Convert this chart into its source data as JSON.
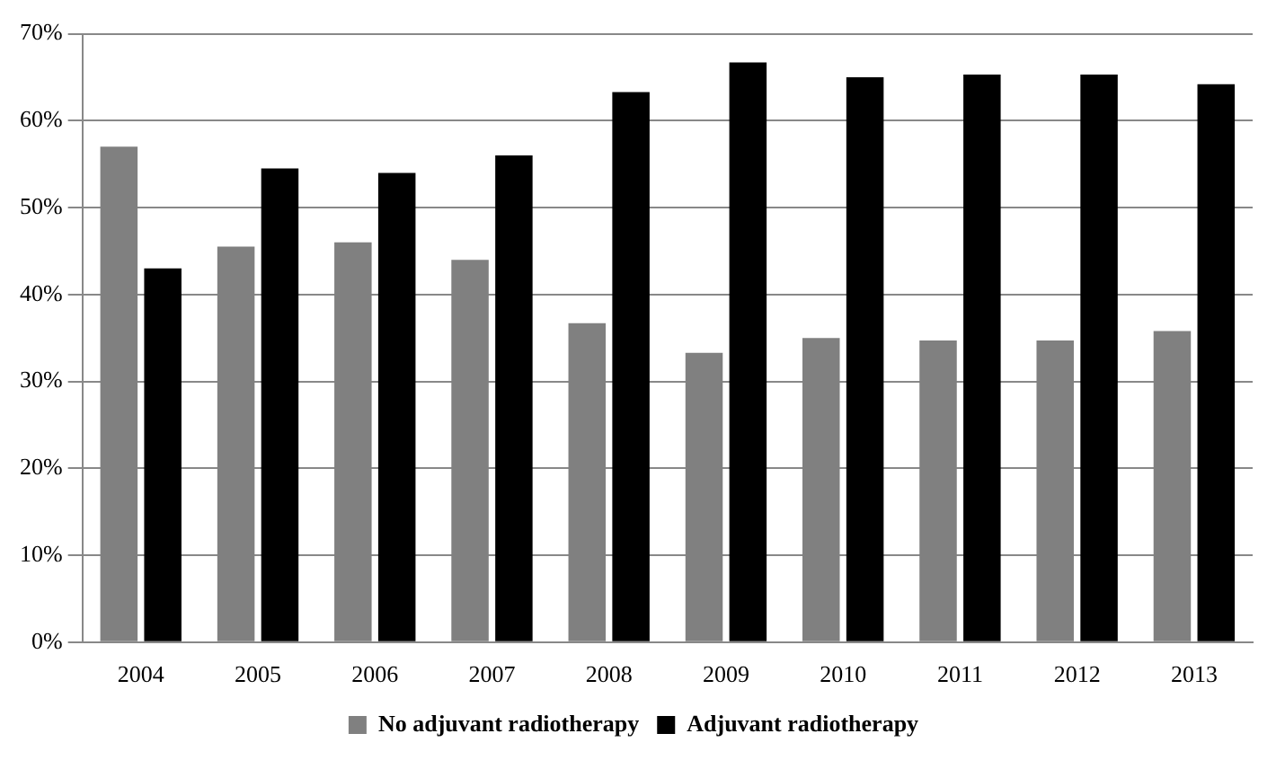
{
  "chart_data": {
    "type": "bar",
    "categories": [
      "2004",
      "2005",
      "2006",
      "2007",
      "2008",
      "2009",
      "2010",
      "2011",
      "2012",
      "2013"
    ],
    "series": [
      {
        "name": "No adjuvant radiotherapy",
        "color": "#808080",
        "values": [
          57,
          45.5,
          46,
          44,
          36.7,
          33.3,
          35,
          34.7,
          34.7,
          35.8
        ]
      },
      {
        "name": "Adjuvant radiotherapy",
        "color": "#000000",
        "values": [
          43,
          54.5,
          54,
          56,
          63.3,
          66.7,
          65,
          65.3,
          65.3,
          64.2
        ]
      }
    ],
    "ylim": [
      0,
      70
    ],
    "yticks": [
      {
        "value": 0,
        "label": "0%"
      },
      {
        "value": 10,
        "label": "10%"
      },
      {
        "value": 20,
        "label": "20%"
      },
      {
        "value": 30,
        "label": "30%"
      },
      {
        "value": 40,
        "label": "40%"
      },
      {
        "value": 50,
        "label": "50%"
      },
      {
        "value": 60,
        "label": "60%"
      },
      {
        "value": 70,
        "label": "70%"
      }
    ],
    "grid": "y",
    "legend": "bottom"
  }
}
